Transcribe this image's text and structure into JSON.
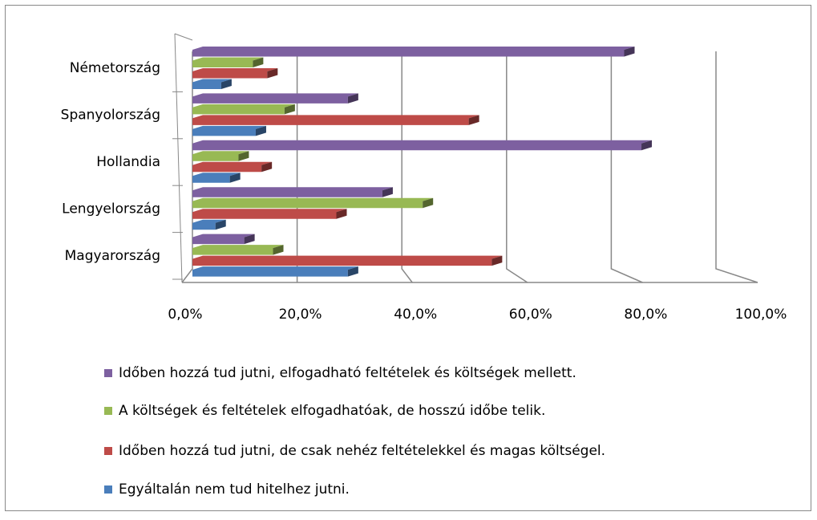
{
  "chart_data": {
    "type": "bar",
    "orientation": "horizontal",
    "categories": [
      "Magyarország",
      "Lengyelország",
      "Hollandia",
      "Spanyolország",
      "Németország"
    ],
    "series": [
      {
        "name": "Egyáltalán nem tud hitelhez jutni.",
        "color": "#4a7ebb",
        "values": [
          27,
          4,
          6.5,
          11,
          5
        ]
      },
      {
        "name": "Időben hozzá tud jutni, de csak nehéz feltételekkel és magas költségel.",
        "color": "#be4b48",
        "values": [
          52,
          25,
          12,
          48,
          13
        ]
      },
      {
        "name": "A költségek és feltételek elfogadhatóak, de hosszú időbe telik.",
        "color": "#98b954",
        "values": [
          14,
          40,
          8,
          16,
          10.5
        ]
      },
      {
        "name": "Időben hozzá tud jutni, elfogadható feltételek és költségek mellett.",
        "color": "#7d60a0",
        "values": [
          9,
          33,
          78,
          27,
          75
        ]
      }
    ],
    "xlim": [
      0,
      100
    ],
    "xticks": [
      {
        "value": 0,
        "label": "0,0%"
      },
      {
        "value": 20,
        "label": "20,0%"
      },
      {
        "value": 40,
        "label": "40,0%"
      },
      {
        "value": 60,
        "label": "60,0%"
      },
      {
        "value": 80,
        "label": "80,0%"
      },
      {
        "value": 100,
        "label": "100,0%"
      }
    ],
    "grid": true,
    "legend": "bottom"
  }
}
